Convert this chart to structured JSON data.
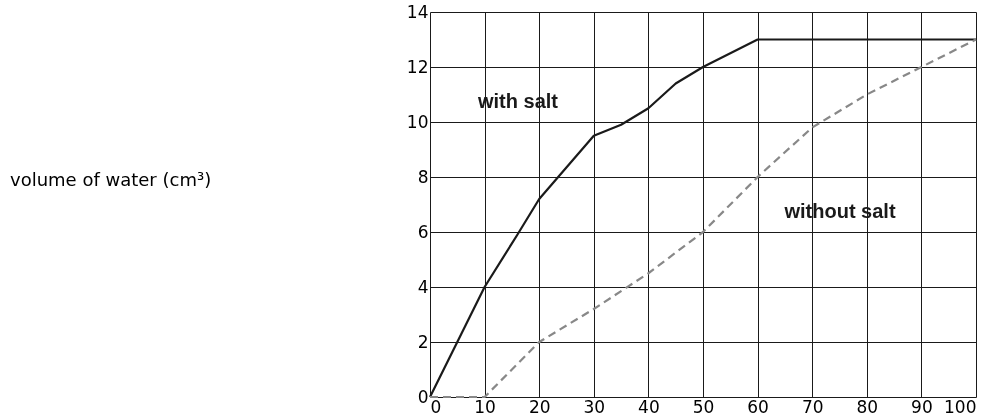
{
  "chart_data": {
    "type": "line",
    "annotations": [
      "volume of water (cm³)"
    ],
    "xlim": [
      0,
      100
    ],
    "xticks": [
      0,
      10,
      20,
      30,
      40,
      50,
      60,
      70,
      80,
      90,
      100
    ],
    "ylim": [
      0,
      14
    ],
    "yticks": [
      0,
      2,
      4,
      6,
      8,
      10,
      12,
      14
    ],
    "grid": true,
    "marker": "none",
    "series": [
      {
        "name": "with salt",
        "color": "#1a1a1a",
        "line_style": "solid",
        "x": [
          0,
          10,
          16,
          20,
          30,
          35,
          40,
          45,
          50,
          60,
          100
        ],
        "values": [
          0,
          4,
          5.9,
          7.2,
          9.5,
          9.9,
          10.5,
          11.4,
          12,
          13,
          13
        ]
      },
      {
        "name": "without salt",
        "color": "#888888",
        "line_style": "dashed",
        "x": [
          0,
          10,
          20,
          30,
          40,
          50,
          60,
          70,
          80,
          90,
          100
        ],
        "values": [
          0,
          0,
          2,
          3.2,
          4.5,
          6,
          8,
          9.8,
          11,
          12,
          13
        ]
      }
    ]
  }
}
